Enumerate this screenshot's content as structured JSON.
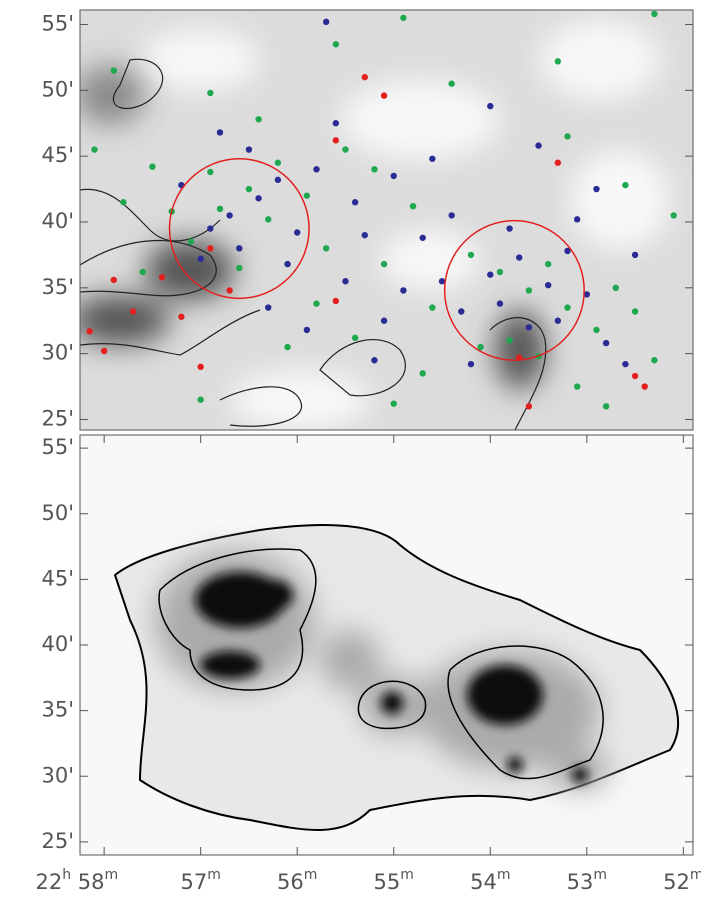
{
  "chart_data": [
    {
      "type": "scatter",
      "xlim": [
        58.25,
        51.9
      ],
      "ylim": [
        24.2,
        56.1
      ],
      "yticks": [
        {
          "value": 25,
          "label": "25'"
        },
        {
          "value": 30,
          "label": "30'"
        },
        {
          "value": 35,
          "label": "35'"
        },
        {
          "value": 40,
          "label": "40'"
        },
        {
          "value": 45,
          "label": "45'"
        },
        {
          "value": 50,
          "label": "50'"
        },
        {
          "value": 55,
          "label": "55'"
        }
      ],
      "series": [
        {
          "color": "#1fa84f",
          "x": [
            56.8,
            56.5,
            57.1,
            56.3,
            56.9,
            56.2,
            55.9,
            56.6,
            57.3,
            55.5,
            55.2,
            54.8,
            55.7,
            55.1,
            54.6,
            54.2,
            53.9,
            53.6,
            53.4,
            53.2,
            53.8,
            53.5,
            54.1,
            52.9,
            52.7,
            52.5,
            52.3,
            53.1,
            54.7,
            55.4,
            55.8,
            56.1,
            57.5,
            57.8,
            58.1,
            57.6,
            56.4,
            55.6,
            54.4,
            53.2,
            52.1,
            52.6,
            57.9,
            56.9,
            54.9,
            52.3,
            53.3,
            55.0,
            57.0,
            52.8
          ],
          "values": [
            41,
            42.5,
            38.5,
            40.2,
            43.8,
            44.5,
            42,
            36.5,
            40.8,
            45.5,
            44,
            41.2,
            38,
            36.8,
            33.5,
            37.5,
            36.2,
            34.8,
            36.8,
            33.5,
            31,
            29.8,
            30.5,
            31.8,
            35,
            33.2,
            29.5,
            27.5,
            28.5,
            31.2,
            33.8,
            30.5,
            44.2,
            41.5,
            45.5,
            36.2,
            47.8,
            53.5,
            50.5,
            46.5,
            40.5,
            42.8,
            51.5,
            49.8,
            55.5,
            55.8,
            52.2,
            26.2,
            26.5,
            26.0
          ]
        },
        {
          "color": "#2b2b96",
          "x": [
            56.7,
            56.4,
            56.0,
            56.9,
            56.2,
            56.6,
            55.8,
            55.4,
            55.0,
            55.3,
            54.7,
            54.5,
            54.0,
            53.7,
            53.4,
            53.9,
            53.3,
            53.0,
            52.8,
            53.6,
            54.3,
            54.9,
            55.5,
            55.9,
            56.3,
            57.2,
            57.0,
            55.6,
            54.6,
            53.1,
            52.5,
            54.2,
            55.2,
            56.5,
            53.5,
            52.9,
            54.0,
            55.7,
            56.8,
            53.8,
            52.6,
            55.1,
            54.4,
            56.1,
            53.2
          ],
          "values": [
            40.5,
            41.8,
            39.2,
            39.5,
            43.2,
            38.0,
            44.0,
            41.5,
            43.5,
            39.0,
            38.8,
            35.5,
            36.0,
            37.3,
            35.2,
            33.8,
            32.5,
            34.5,
            30.8,
            32.0,
            33.2,
            34.8,
            35.5,
            31.8,
            33.5,
            42.8,
            37.2,
            47.5,
            44.8,
            40.2,
            37.5,
            29.2,
            29.5,
            45.5,
            45.8,
            42.5,
            48.8,
            55.2,
            46.8,
            39.5,
            29.2,
            32.5,
            40.5,
            36.8,
            37.8
          ]
        },
        {
          "color": "#e3201f",
          "x": [
            57.7,
            58.15,
            57.2,
            56.7,
            57.4,
            55.6,
            55.3,
            55.1,
            53.7,
            53.6,
            53.3,
            52.5,
            52.4,
            58.0,
            57.9,
            56.9,
            57.0,
            55.6
          ],
          "values": [
            33.2,
            31.7,
            32.8,
            34.8,
            35.8,
            34.0,
            51.0,
            49.6,
            29.7,
            26.0,
            44.5,
            28.3,
            27.5,
            30.2,
            35.6,
            38.0,
            29.0,
            46.2
          ]
        }
      ],
      "circles": [
        {
          "x": 56.6,
          "y": 39.5,
          "r": 5.3,
          "color": "#e3201f"
        },
        {
          "x": 53.75,
          "y": 34.8,
          "r": 5.3,
          "color": "#e3201f"
        }
      ]
    },
    {
      "type": "image",
      "xlim": [
        58.25,
        51.9
      ],
      "ylim": [
        24.0,
        56.0
      ],
      "yticks": [
        {
          "value": 25,
          "label": "25'"
        },
        {
          "value": 30,
          "label": "30'"
        },
        {
          "value": 35,
          "label": "35'"
        },
        {
          "value": 40,
          "label": "40'"
        },
        {
          "value": 45,
          "label": "45'"
        },
        {
          "value": 50,
          "label": "50'"
        },
        {
          "value": 55,
          "label": "55'"
        }
      ],
      "xticks": [
        {
          "value": 58,
          "label": "22h 58m"
        },
        {
          "value": 57,
          "label": "57m"
        },
        {
          "value": 56,
          "label": "56m"
        },
        {
          "value": 55,
          "label": "55m"
        },
        {
          "value": 54,
          "label": "54m"
        },
        {
          "value": 53,
          "label": "53m"
        },
        {
          "value": 52,
          "label": "52m"
        }
      ]
    }
  ]
}
